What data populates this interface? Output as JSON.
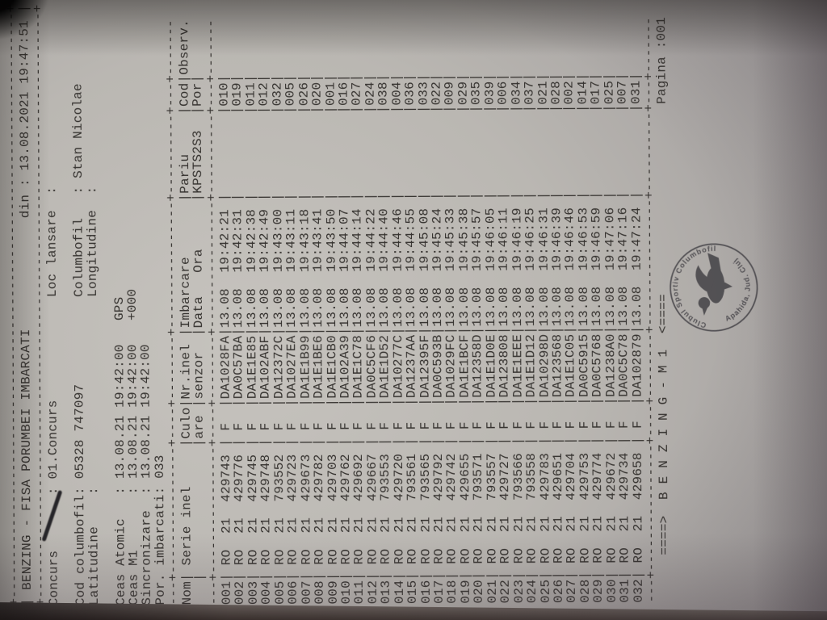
{
  "colors": {
    "paper": "#bcb9b4",
    "ink": "#35322f",
    "stamp_ink": "#3f3d42",
    "surface": "#241e1a"
  },
  "document": {
    "header": {
      "title": "BENZING - FISA PORUMBEI IMBARCATI",
      "din_label": "din",
      "din_value": "13.08.2021 19:47:51"
    },
    "fields": [
      {
        "label": "Concurs",
        "value": "01.Concurs",
        "label2": "Loc lansare",
        "value2": ""
      },
      {
        "label": "Cod columbofil",
        "value": "05328 747097",
        "label2": "Columbofil",
        "value2": "Stan Nicolae"
      },
      {
        "label": "Latitudine",
        "value": "",
        "label2": "Longitudine",
        "value2": ""
      }
    ],
    "clock_fields": [
      {
        "label": "Ceas Atomic",
        "value": "13.08.21 19:42:00",
        "extra": "GPS"
      },
      {
        "label": "Ceas M1",
        "value": "13.08.21 19:42:00",
        "extra": "+000"
      },
      {
        "label": "Sincronizare",
        "value": "13.08.21 19:42:00",
        "extra": ""
      },
      {
        "label": "Por. imbarcati",
        "value": "033",
        "extra": ""
      }
    ],
    "table": {
      "headers": {
        "nom": "Nom",
        "serie": "Serie inel",
        "culo1": "Culo",
        "culo2": "are",
        "inel1": "Nr.inel",
        "inel2": "senzor",
        "imb1": "Imbarcare",
        "imb2a": "Data",
        "imb2b": "Ora",
        "pariu1": "Pariu",
        "pariu2": "KPSTS2S3",
        "cod1": "Cod",
        "cod2": "Por",
        "observ": "Observ."
      },
      "row_format": [
        "nom",
        "serie",
        "an",
        "nr_inel",
        "culoare",
        "nr_inel_senzor",
        "data",
        "ora",
        "cod_por"
      ],
      "note": "Pariu and Observ. columns are empty for all rows",
      "rows": [
        [
          "001",
          "RO",
          "21",
          "429743",
          "F",
          "DA1028FA",
          "13.08",
          "19:42:21",
          "010"
        ],
        [
          "002",
          "RO",
          "21",
          "429776",
          "F",
          "DA0C57BA",
          "13.08",
          "19:42:31",
          "019"
        ],
        [
          "003",
          "RO",
          "21",
          "429745",
          "F",
          "DA1E1E85",
          "13.08",
          "19:42:38",
          "011"
        ],
        [
          "004",
          "RO",
          "21",
          "429748",
          "F",
          "DA102ABF",
          "13.08",
          "19:42:49",
          "012"
        ],
        [
          "005",
          "RO",
          "21",
          "793552",
          "F",
          "DA12372C",
          "13.08",
          "19:43:00",
          "032"
        ],
        [
          "006",
          "RO",
          "21",
          "429723",
          "F",
          "DA1027EA",
          "13.08",
          "19:43:11",
          "005"
        ],
        [
          "007",
          "RO",
          "21",
          "429673",
          "F",
          "DA1E1B99",
          "13.08",
          "19:43:18",
          "026"
        ],
        [
          "008",
          "RO",
          "21",
          "429782",
          "F",
          "DA1E1BE6",
          "13.08",
          "19:43:41",
          "020"
        ],
        [
          "009",
          "RO",
          "21",
          "429703",
          "F",
          "DA1E1CB0",
          "13.08",
          "19:43:50",
          "001"
        ],
        [
          "010",
          "RO",
          "21",
          "429762",
          "F",
          "DA102A39",
          "13.08",
          "19:44:07",
          "016"
        ],
        [
          "011",
          "RO",
          "21",
          "429692",
          "F",
          "DA1E1C78",
          "13.08",
          "19:44:14",
          "027"
        ],
        [
          "012",
          "RO",
          "21",
          "429667",
          "F",
          "DA0C5CF6",
          "13.08",
          "19:44:22",
          "024"
        ],
        [
          "013",
          "RO",
          "21",
          "793553",
          "F",
          "DA1E1D52",
          "13.08",
          "19:44:40",
          "038"
        ],
        [
          "014",
          "RO",
          "21",
          "429720",
          "F",
          "DA10277C",
          "13.08",
          "19:44:46",
          "004"
        ],
        [
          "015",
          "RO",
          "21",
          "793561",
          "F",
          "DA1237AA",
          "13.08",
          "19:44:55",
          "036"
        ],
        [
          "016",
          "RO",
          "21",
          "793565",
          "F",
          "DA12395F",
          "13.08",
          "19:45:08",
          "033"
        ],
        [
          "017",
          "RO",
          "21",
          "429792",
          "F",
          "DA0C593B",
          "13.08",
          "19:45:24",
          "022"
        ],
        [
          "018",
          "RO",
          "21",
          "429742",
          "F",
          "DA1029FC",
          "13.08",
          "19:45:33",
          "009"
        ],
        [
          "019",
          "RO",
          "21",
          "429655",
          "F",
          "DA1E1BCF",
          "13.08",
          "19:45:38",
          "029"
        ],
        [
          "020",
          "RO",
          "21",
          "793571",
          "F",
          "DA12358D",
          "13.08",
          "19:45:57",
          "035"
        ],
        [
          "021",
          "RO",
          "21",
          "793557",
          "F",
          "DA1E1D0E",
          "13.08",
          "19:46:05",
          "039"
        ],
        [
          "022",
          "RO",
          "21",
          "429727",
          "F",
          "DA123808",
          "13.08",
          "19:46:11",
          "006"
        ],
        [
          "023",
          "RO",
          "21",
          "793566",
          "F",
          "DA1E1EEE",
          "13.08",
          "19:46:19",
          "034"
        ],
        [
          "024",
          "RO",
          "21",
          "793558",
          "F",
          "DA1E1D12",
          "13.08",
          "19:46:25",
          "037"
        ],
        [
          "025",
          "RO",
          "21",
          "429783",
          "F",
          "DA10298D",
          "13.08",
          "19:46:31",
          "021"
        ],
        [
          "026",
          "RO",
          "21",
          "429651",
          "F",
          "DA123568",
          "13.08",
          "19:46:39",
          "028"
        ],
        [
          "027",
          "RO",
          "21",
          "429704",
          "F",
          "DA1E1C05",
          "13.08",
          "19:46:46",
          "002"
        ],
        [
          "028",
          "RO",
          "21",
          "429753",
          "F",
          "DA0C5915",
          "13.08",
          "19:46:53",
          "014"
        ],
        [
          "029",
          "RO",
          "21",
          "429774",
          "F",
          "DA0C5768",
          "13.08",
          "19:46:59",
          "017"
        ],
        [
          "030",
          "RO",
          "21",
          "429672",
          "F",
          "DA1238A0",
          "13.08",
          "19:47:06",
          "025"
        ],
        [
          "031",
          "RO",
          "21",
          "429734",
          "F",
          "DA0C5C78",
          "13.08",
          "19:47:16",
          "007"
        ],
        [
          "032",
          "RO",
          "21",
          "429658",
          "F",
          "DA102879",
          "13.08",
          "19:47:24",
          "031"
        ]
      ]
    },
    "footer": {
      "arrow_left": "====>",
      "banner": "B E N Z I N G - M 1",
      "arrow_right": "<====",
      "page_label": "Pagina :",
      "page_value": "001"
    }
  },
  "stamp": {
    "ring_top": "Clubul Sportiv Columbofil",
    "ring_bottom": "* Apahida, Jud. Cluj *",
    "icon": "pigeon-icon"
  }
}
